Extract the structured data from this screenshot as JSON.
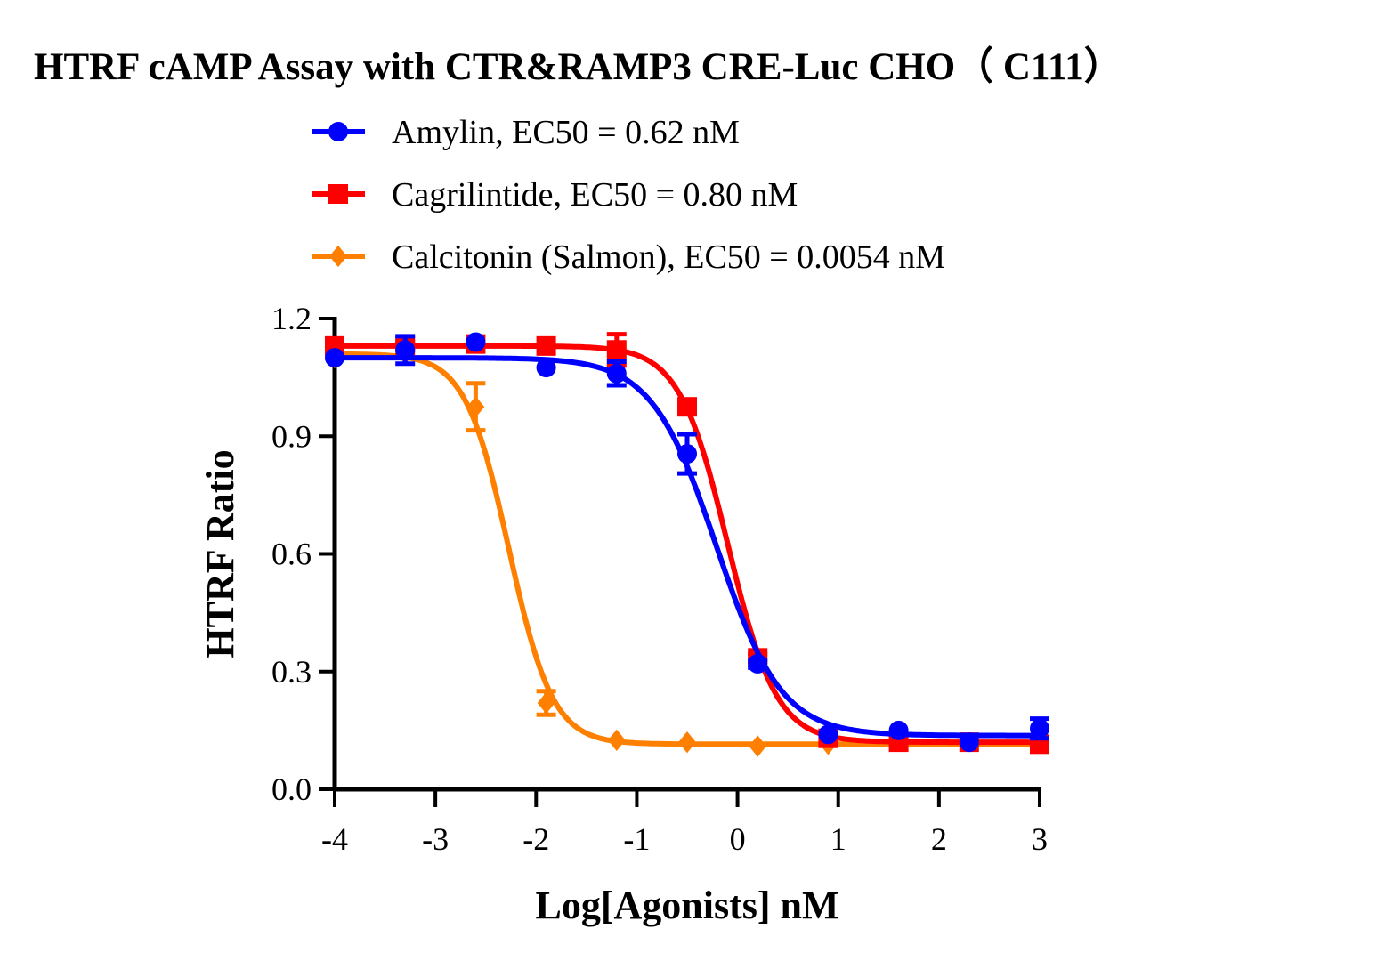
{
  "chart_data": {
    "type": "line",
    "title": "HTRF cAMP Assay with CTR&RAMP3 CRE-Luc CHO（ C111）",
    "xlabel": "Log[Agonists] nM",
    "ylabel": "HTRF Ratio",
    "xlim": [
      -4,
      3
    ],
    "ylim": [
      0,
      1.2
    ],
    "xticks": [
      "-4",
      "-3",
      "-2",
      "-1",
      "0",
      "1",
      "2",
      "3"
    ],
    "yticks": [
      "0.0",
      "0.3",
      "0.6",
      "0.9",
      "1.2"
    ],
    "grid": false,
    "legend_position": "top",
    "series": [
      {
        "name": "Amylin, EC50 = 0.62 nM",
        "color": "#0000FF",
        "marker": "circle",
        "x": [
          -4,
          -3.3,
          -2.6,
          -1.9,
          -1.2,
          -0.5,
          0.2,
          0.9,
          1.6,
          2.3,
          3.0
        ],
        "y": [
          1.1,
          1.12,
          1.14,
          1.075,
          1.06,
          0.855,
          0.32,
          0.14,
          0.15,
          0.12,
          0.155
        ],
        "err": [
          0.005,
          0.035,
          0.005,
          0.005,
          0.03,
          0.05,
          0.01,
          0.005,
          0.005,
          0.005,
          0.025
        ],
        "fit": {
          "top": 1.1,
          "bottom": 0.137,
          "logEC50": -0.208,
          "hill": 1.35
        }
      },
      {
        "name": "Cagrilintide, EC50 = 0.80 nM",
        "color": "#FF0000",
        "marker": "square",
        "x": [
          -4,
          -3.3,
          -2.6,
          -1.9,
          -1.2,
          -0.5,
          0.2,
          0.9,
          1.6,
          2.3,
          3.0
        ],
        "y": [
          1.13,
          1.13,
          1.135,
          1.13,
          1.12,
          0.975,
          0.335,
          0.13,
          0.12,
          0.12,
          0.115
        ],
        "err": [
          0.005,
          0.01,
          0.005,
          0.005,
          0.04,
          0.01,
          0.01,
          0.005,
          0.005,
          0.005,
          0.005
        ],
        "fit": {
          "top": 1.13,
          "bottom": 0.12,
          "logEC50": -0.097,
          "hill": 1.8
        }
      },
      {
        "name": "Calcitonin (Salmon), EC50 = 0.0054 nM",
        "color": "#FF8000",
        "marker": "diamond",
        "x": [
          -4,
          -3.3,
          -2.6,
          -1.9,
          -1.2,
          -0.5,
          0.2,
          0.9
        ],
        "y": [
          1.1,
          1.11,
          0.975,
          0.22,
          0.125,
          0.12,
          0.11,
          0.115
        ],
        "err": [
          0.005,
          0.005,
          0.06,
          0.03,
          0.005,
          0.005,
          0.005,
          0.005
        ],
        "fit": {
          "top": 1.11,
          "bottom": 0.115,
          "logEC50": -2.27,
          "hill": 2.0
        }
      }
    ]
  }
}
